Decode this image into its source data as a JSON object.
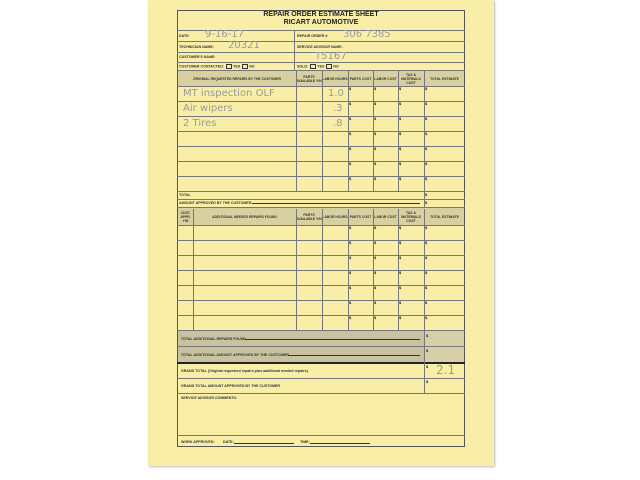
{
  "title": "REPAIR ORDER ESTIMATE SHEET",
  "company": "RICART AUTOMOTIVE",
  "fields": {
    "date_label": "DATE:",
    "date_value": "9-16-17",
    "repair_order_label": "REPAIR ORDER #:",
    "repair_order_value": "306 7385",
    "technician_label": "TECHNICIAN NAME:",
    "technician_value": "20321",
    "service_advisor_label": "SERVICE ADVISOR NAME:",
    "service_advisor_value": "T5167",
    "customer_label": "CUSTOMER'S NAME:",
    "contacted_label": "CUSTOMER CONTACTED:",
    "yes": "YES",
    "no": "NO",
    "sold_label": "SOLD:"
  },
  "section1": {
    "headers": [
      "ORIGINAL REQUESTED REPAIRS BY THE CUSTOMER",
      "PARTS AVAILABLE Y/N",
      "LABOR HOURS",
      "PARTS COST",
      "LABOR COST",
      "TAX & MATERIALS COST",
      "TOTAL ESTIMATE"
    ],
    "rows": [
      {
        "repair": "MT inspection   OLF",
        "hours": "1.0"
      },
      {
        "repair": "Air wipers",
        "hours": ".3"
      },
      {
        "repair": "2 Tires",
        "hours": ".8"
      }
    ],
    "total_label": "TOTAL",
    "approved_label": "AMOUNT APPROVED BY THE CUSTOMER"
  },
  "section2": {
    "headers": [
      "CUST. APPR. Y/N",
      "ADDITIONAL NEEDED REPAIRS FOUND",
      "PARTS AVAILABLE Y/N",
      "LABOR HOURS",
      "PARTS COST",
      "LABOR COST",
      "TAX & MATERIALS COST",
      "TOTAL ESTIMATE"
    ]
  },
  "totals": {
    "additional_found": "TOTAL ADDITIONAL REPAIRS FOUND",
    "additional_approved": "TOTAL ADDITIONAL AMOUNT APPROVED BY THE CUSTOMER",
    "grand_total": "GRAND TOTAL (Original requested repairs plus additional needed repairs)",
    "grand_total_value": "2.1",
    "grand_total_approved": "GRAND TOTAL AMOUNT APPROVED BY THE CUSTOMER",
    "comments": "SERVICE ADVISOR COMMENTS:",
    "work_approved": "WORK APPROVED:",
    "date": "DATE:",
    "time": "TIME:",
    "currency": "$"
  }
}
